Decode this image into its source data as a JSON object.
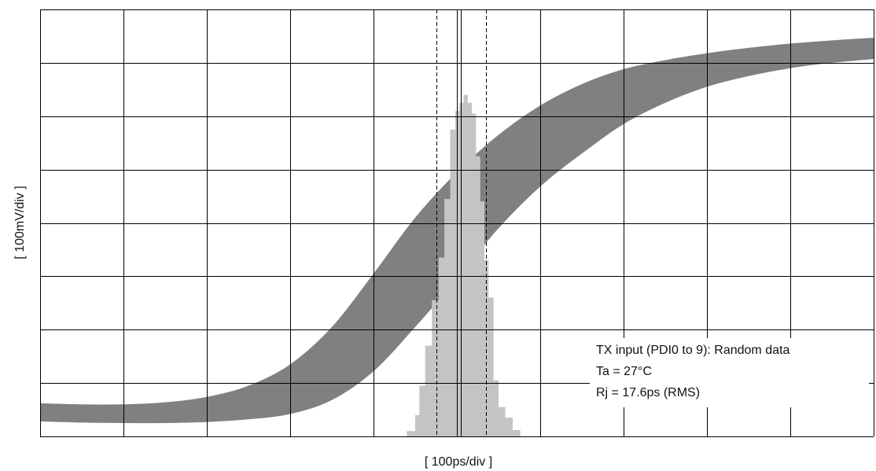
{
  "chart_data": {
    "type": "area",
    "xlabel": "[ 100ps/div ]",
    "ylabel": "[ 100mV/div ]",
    "grid": true,
    "x_divisions": 10,
    "y_divisions": 8,
    "xlim": [
      0,
      10
    ],
    "ylim": [
      0,
      8
    ],
    "annotations": [
      "TX input (PDI0 to 9): Random data",
      "Ta = 27°C",
      "Rj = 17.6ps (RMS)"
    ],
    "colors": {
      "eye_band": "#808080",
      "histogram": "#c4c4c4",
      "grid": "#000000",
      "markers": "#000000"
    },
    "series": [
      {
        "kind": "band",
        "x": [
          0,
          0.5,
          1.0,
          1.5,
          2.0,
          2.5,
          3.0,
          3.5,
          4.0,
          4.5,
          5.0,
          5.5,
          6.0,
          6.5,
          7.0,
          7.5,
          8.0,
          8.5,
          9.0,
          9.5,
          10.0
        ],
        "upper": [
          0.62,
          0.6,
          0.6,
          0.64,
          0.74,
          0.95,
          1.35,
          2.05,
          3.05,
          4.1,
          4.95,
          5.65,
          6.2,
          6.6,
          6.88,
          7.05,
          7.18,
          7.28,
          7.36,
          7.42,
          7.47
        ],
        "lower": [
          0.28,
          0.26,
          0.25,
          0.25,
          0.27,
          0.32,
          0.42,
          0.68,
          1.22,
          2.05,
          2.95,
          3.9,
          4.68,
          5.3,
          5.85,
          6.25,
          6.55,
          6.75,
          6.9,
          7.0,
          7.07
        ]
      },
      {
        "kind": "histogram",
        "x": [
          4.4,
          4.5,
          4.55,
          4.62,
          4.7,
          4.78,
          4.85,
          4.92,
          4.98,
          5.03,
          5.08,
          5.13,
          5.18,
          5.23,
          5.28,
          5.33,
          5.38,
          5.44,
          5.5,
          5.58,
          5.67,
          5.76,
          5.86
        ],
        "y": [
          0.0,
          0.1,
          0.4,
          0.95,
          1.7,
          2.55,
          3.35,
          4.45,
          5.75,
          6.1,
          6.25,
          6.4,
          6.25,
          6.05,
          5.25,
          4.4,
          3.3,
          2.6,
          1.05,
          0.55,
          0.35,
          0.12,
          0.0
        ]
      }
    ],
    "markers": {
      "dashed_x": [
        4.75,
        5.35
      ],
      "solid_x": [
        5.05
      ]
    }
  }
}
